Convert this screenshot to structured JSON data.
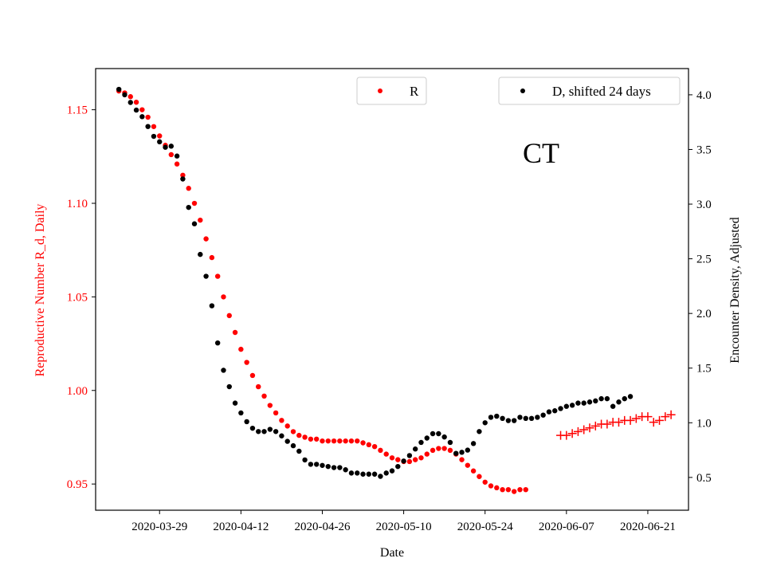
{
  "chart_data": {
    "type": "scatter",
    "xlabel": "Date",
    "ylabel_left": "Reproductive Number R_d, Daily",
    "ylabel_right": "Encounter Density, Adjusted",
    "annotation": "CT",
    "xlim": [
      "2020-03-18",
      "2020-06-28"
    ],
    "ylim_left": [
      0.936,
      1.172
    ],
    "ylim_right": [
      0.2,
      4.24
    ],
    "x_ticks": [
      "2020-03-29",
      "2020-04-12",
      "2020-04-26",
      "2020-05-10",
      "2020-05-24",
      "2020-06-07",
      "2020-06-21"
    ],
    "y_ticks_left": [
      "0.95",
      "1.00",
      "1.05",
      "1.10",
      "1.15"
    ],
    "y_ticks_right": [
      "0.5",
      "1.0",
      "1.5",
      "2.0",
      "2.5",
      "3.0",
      "3.5",
      "4.0"
    ],
    "colors": {
      "R": "#ff0000",
      "D": "#000000",
      "left_axis": "#ff0000",
      "right_axis": "#000000"
    },
    "legend": [
      {
        "label": "R",
        "color": "#ff0000",
        "position": "top-center"
      },
      {
        "label": "D, shifted 24 days",
        "color": "#000000",
        "position": "top-right"
      }
    ],
    "series": [
      {
        "name": "R",
        "axis": "left",
        "marker": "dot",
        "color": "#ff0000",
        "start_date": "2020-03-22",
        "values": [
          1.16,
          1.159,
          1.157,
          1.154,
          1.15,
          1.146,
          1.141,
          1.136,
          1.131,
          1.126,
          1.121,
          1.115,
          1.108,
          1.1,
          1.091,
          1.081,
          1.071,
          1.061,
          1.05,
          1.04,
          1.031,
          1.022,
          1.015,
          1.008,
          1.002,
          0.997,
          0.992,
          0.988,
          0.984,
          0.981,
          0.978,
          0.976,
          0.975,
          0.974,
          0.974,
          0.973,
          0.973,
          0.973,
          0.973,
          0.973,
          0.973,
          0.973,
          0.972,
          0.971,
          0.97,
          0.968,
          0.966,
          0.964,
          0.963,
          0.962,
          0.962,
          0.963,
          0.964,
          0.966,
          0.968,
          0.969,
          0.969,
          0.968,
          0.966,
          0.963,
          0.96,
          0.957,
          0.954,
          0.951,
          0.949,
          0.948,
          0.947,
          0.947,
          0.946,
          0.947,
          0.947
        ]
      },
      {
        "name": "R",
        "axis": "left",
        "marker": "plus",
        "color": "#ff0000",
        "start_date": "2020-06-06",
        "values": [
          0.976,
          0.976,
          0.977,
          0.978,
          0.979,
          0.98,
          0.981,
          0.982,
          0.982,
          0.983,
          0.983,
          0.984,
          0.984,
          0.985,
          0.986,
          0.986,
          0.983,
          0.984,
          0.986,
          0.987
        ]
      },
      {
        "name": "D, shifted 24 days",
        "axis": "right",
        "marker": "dot",
        "color": "#000000",
        "start_date": "2020-03-22",
        "values": [
          4.05,
          4.0,
          3.93,
          3.86,
          3.8,
          3.71,
          3.62,
          3.57,
          3.52,
          3.53,
          3.44,
          3.23,
          2.97,
          2.82,
          2.54,
          2.34,
          2.07,
          1.73,
          1.48,
          1.33,
          1.18,
          1.09,
          1.01,
          0.95,
          0.92,
          0.92,
          0.94,
          0.92,
          0.88,
          0.83,
          0.79,
          0.74,
          0.66,
          0.62,
          0.62,
          0.61,
          0.6,
          0.59,
          0.59,
          0.57,
          0.54,
          0.54,
          0.53,
          0.53,
          0.53,
          0.51,
          0.54,
          0.56,
          0.6,
          0.65,
          0.7,
          0.76,
          0.82,
          0.86,
          0.9,
          0.9,
          0.87,
          0.82,
          0.72,
          0.73,
          0.75,
          0.81,
          0.92,
          1.0,
          1.05,
          1.06,
          1.04,
          1.02,
          1.02,
          1.05,
          1.04,
          1.04,
          1.05,
          1.07,
          1.1,
          1.11,
          1.13,
          1.15,
          1.16,
          1.18,
          1.18,
          1.19,
          1.2,
          1.22,
          1.22,
          1.15,
          1.19,
          1.22,
          1.24
        ]
      }
    ]
  }
}
